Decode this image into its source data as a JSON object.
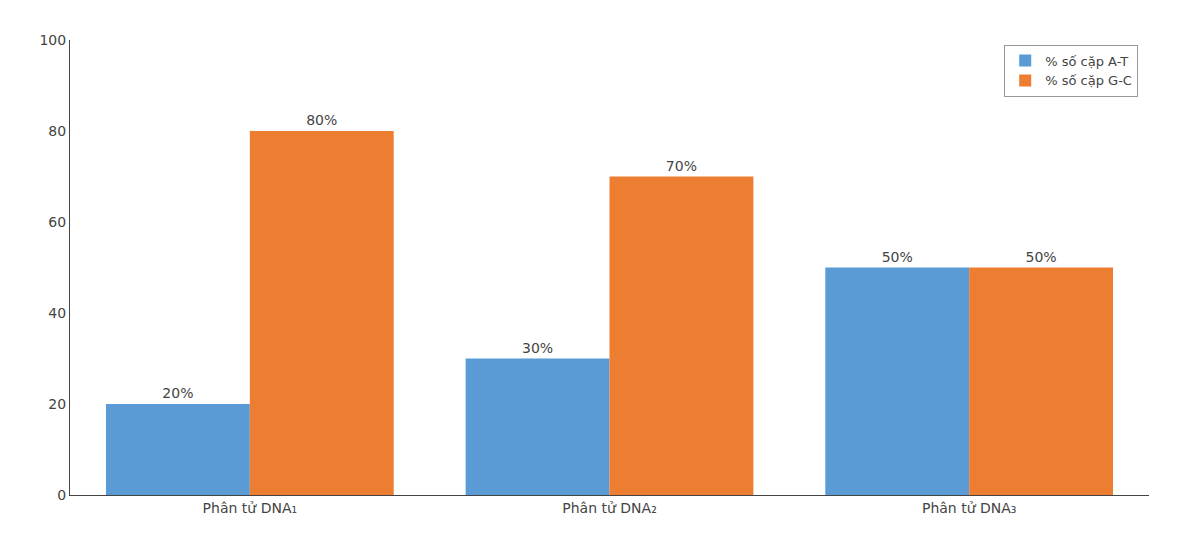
{
  "chart_data": {
    "type": "bar",
    "categories": [
      "Phân tử DNA₁",
      "Phân tử DNA₂",
      "Phân tử DNA₃"
    ],
    "series": [
      {
        "name": "% số cặp A-T",
        "color": "#5B9BD5",
        "values": [
          20,
          30,
          50
        ],
        "value_labels": [
          "20%",
          "30%",
          "50%"
        ]
      },
      {
        "name": "% số cặp G-C",
        "color": "#ED7D31",
        "values": [
          80,
          70,
          50
        ],
        "value_labels": [
          "80%",
          "70%",
          "50%"
        ]
      }
    ],
    "ylim": [
      0,
      100
    ],
    "yticks": [
      0,
      20,
      40,
      60,
      80,
      100
    ],
    "grid": false,
    "legend": "upper right",
    "data_labels": true
  }
}
